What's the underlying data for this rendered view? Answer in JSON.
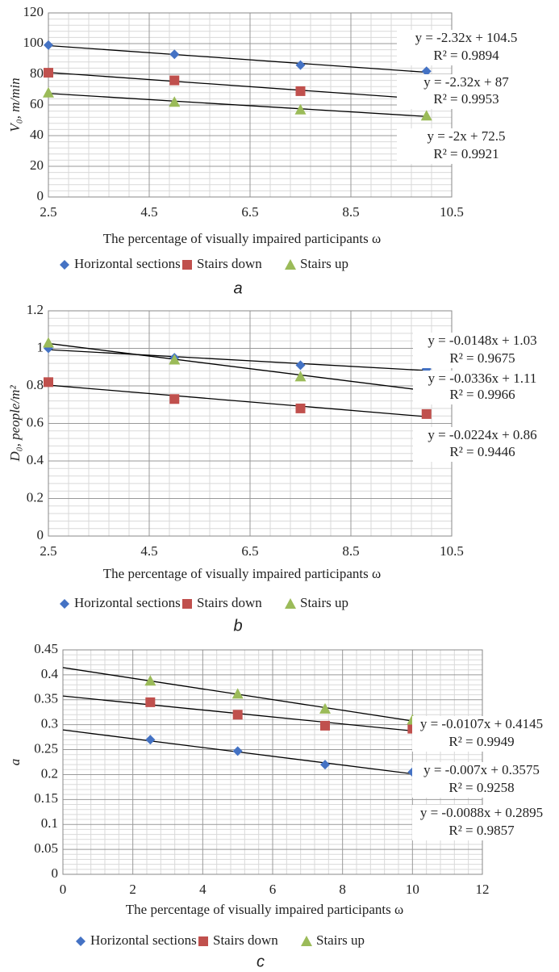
{
  "chart_data": [
    {
      "type": "scatter",
      "caption": "a",
      "xlabel": "The percentage of visually impaired participants ω",
      "ylabel": "V₀, m/min",
      "xlim": [
        2.5,
        10.5
      ],
      "xticks": [
        2.5,
        4.5,
        6.5,
        8.5,
        10.5
      ],
      "ylim": [
        0,
        120
      ],
      "yticks": [
        0,
        20,
        40,
        60,
        80,
        100,
        120
      ],
      "grid": true,
      "legend": "bottom",
      "series": [
        {
          "name": "Horizontal sections",
          "color": "#4472c4",
          "marker": "diamond",
          "x": [
            2.5,
            5,
            7.5,
            10
          ],
          "values": [
            99,
            93,
            86,
            82
          ],
          "trendline": {
            "slope": -2.32,
            "intercept": 104.5,
            "equation": "y = -2.32x + 104.5",
            "r2": "R² = 0.9894"
          }
        },
        {
          "name": "Stairs down",
          "color": "#c0504d",
          "marker": "square",
          "x": [
            2.5,
            5,
            7.5,
            10
          ],
          "values": [
            81,
            76,
            69,
            64
          ],
          "trendline": {
            "slope": -2.32,
            "intercept": 87,
            "equation": "y = -2.32x + 87",
            "r2": "R² = 0.9953"
          }
        },
        {
          "name": "Stairs up",
          "color": "#9bbb59",
          "marker": "triangle",
          "x": [
            2.5,
            5,
            7.5,
            10
          ],
          "values": [
            68,
            62,
            57,
            53
          ],
          "trendline": {
            "slope": -2,
            "intercept": 72.5,
            "equation": "y = -2x + 72.5",
            "r2": "R² = 0.9921"
          }
        }
      ]
    },
    {
      "type": "scatter",
      "caption": "b",
      "xlabel": "The percentage of visually impaired participants ω",
      "ylabel": "D₀, people/m²",
      "xlim": [
        2.5,
        10.5
      ],
      "xticks": [
        2.5,
        4.5,
        6.5,
        8.5,
        10.5
      ],
      "ylim": [
        0,
        1.2
      ],
      "yticks": [
        0,
        0.2,
        0.4,
        0.6,
        0.8,
        1,
        1.2
      ],
      "grid": true,
      "legend": "bottom",
      "series": [
        {
          "name": "Horizontal sections",
          "color": "#4472c4",
          "marker": "diamond",
          "x": [
            2.5,
            5,
            7.5,
            10
          ],
          "values": [
            1.0,
            0.95,
            0.91,
            0.89
          ],
          "trendline": {
            "slope": -0.0148,
            "intercept": 1.03,
            "equation": "y = -0.0148x + 1.03",
            "r2": "R² = 0.9675"
          }
        },
        {
          "name": "Stairs down",
          "color": "#c0504d",
          "marker": "square",
          "x": [
            2.5,
            5,
            7.5,
            10
          ],
          "values": [
            0.82,
            0.73,
            0.68,
            0.65
          ],
          "trendline": {
            "slope": -0.0224,
            "intercept": 0.86,
            "equation": "y = -0.0224x + 0.86",
            "r2": "R² = 0.9446"
          }
        },
        {
          "name": "Stairs up",
          "color": "#9bbb59",
          "marker": "triangle",
          "x": [
            2.5,
            5,
            7.5,
            10
          ],
          "values": [
            1.03,
            0.94,
            0.85,
            0.78
          ],
          "trendline": {
            "slope": -0.0336,
            "intercept": 1.11,
            "equation": "y = -0.0336x + 1.11",
            "r2": "R² = 0.9966"
          }
        }
      ]
    },
    {
      "type": "scatter",
      "caption": "c",
      "xlabel": "The percentage of visually impaired participants ω",
      "ylabel": "a",
      "xlim": [
        0,
        12
      ],
      "xticks": [
        0,
        2,
        4,
        6,
        8,
        10,
        12
      ],
      "ylim": [
        0,
        0.45
      ],
      "yticks": [
        0,
        0.05,
        0.1,
        0.15,
        0.2,
        0.25,
        0.3,
        0.35,
        0.4,
        0.45
      ],
      "grid": true,
      "legend": "bottom",
      "series": [
        {
          "name": "Horizontal sections",
          "color": "#4472c4",
          "marker": "diamond",
          "x": [
            2.5,
            5,
            7.5,
            10
          ],
          "values": [
            0.27,
            0.247,
            0.22,
            0.205
          ],
          "trendline": {
            "slope": -0.0088,
            "intercept": 0.2895,
            "equation": "y = -0.0088x + 0.2895",
            "r2": "R² = 0.9857"
          }
        },
        {
          "name": "Stairs down",
          "color": "#c0504d",
          "marker": "square",
          "x": [
            2.5,
            5,
            7.5,
            10
          ],
          "values": [
            0.345,
            0.32,
            0.298,
            0.292
          ],
          "trendline": {
            "slope": -0.007,
            "intercept": 0.3575,
            "equation": "y = -0.007x + 0.3575",
            "r2": "R² = 0.9258"
          }
        },
        {
          "name": "Stairs up",
          "color": "#9bbb59",
          "marker": "triangle",
          "x": [
            2.5,
            5,
            7.5,
            10
          ],
          "values": [
            0.388,
            0.362,
            0.332,
            0.31
          ],
          "trendline": {
            "slope": -0.0107,
            "intercept": 0.4145,
            "equation": "y = -0.0107x + 0.4145",
            "r2": "R² = 0.9949"
          }
        }
      ]
    }
  ]
}
